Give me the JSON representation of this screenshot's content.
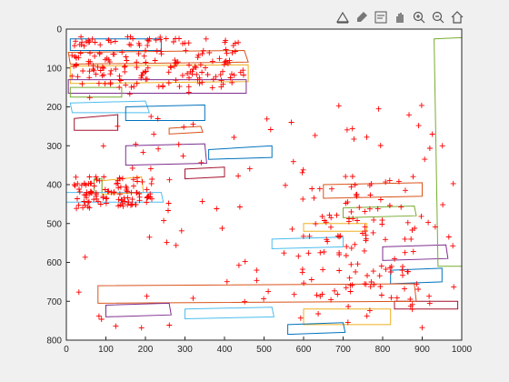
{
  "toolbar": {
    "items": [
      {
        "name": "export-icon"
      },
      {
        "name": "brush-icon"
      },
      {
        "name": "datatip-icon"
      },
      {
        "name": "pan-hand-icon"
      },
      {
        "name": "zoom-in-icon"
      },
      {
        "name": "zoom-out-icon"
      },
      {
        "name": "home-icon"
      }
    ]
  },
  "chart_data": {
    "type": "scatter",
    "title": "",
    "xlabel": "",
    "ylabel": "",
    "xlim": [
      0,
      1000
    ],
    "ylim": [
      0,
      800
    ],
    "y_reversed": true,
    "grid": false,
    "x_ticks": [
      "0",
      "100",
      "200",
      "300",
      "400",
      "500",
      "600",
      "700",
      "800",
      "900",
      "1000"
    ],
    "y_ticks": [
      "0",
      "100",
      "200",
      "300",
      "400",
      "500",
      "600",
      "700",
      "800"
    ],
    "marker": {
      "symbol": "+",
      "color": "#ff0000"
    },
    "polygons": [
      {
        "color": "#0072bd",
        "points": [
          [
            10,
            25
          ],
          [
            240,
            25
          ],
          [
            240,
            55
          ],
          [
            10,
            55
          ]
        ]
      },
      {
        "color": "#d95319",
        "points": [
          [
            5,
            60
          ],
          [
            450,
            55
          ],
          [
            460,
            85
          ],
          [
            10,
            90
          ]
        ]
      },
      {
        "color": "#edb120",
        "points": [
          [
            10,
            95
          ],
          [
            460,
            92
          ],
          [
            460,
            135
          ],
          [
            10,
            140
          ]
        ]
      },
      {
        "color": "#7e2f8e",
        "points": [
          [
            5,
            130
          ],
          [
            455,
            130
          ],
          [
            455,
            165
          ],
          [
            5,
            165
          ]
        ]
      },
      {
        "color": "#77ac30",
        "points": [
          [
            10,
            150
          ],
          [
            140,
            150
          ],
          [
            140,
            175
          ],
          [
            10,
            175
          ]
        ]
      },
      {
        "color": "#4dbeee",
        "points": [
          [
            10,
            190
          ],
          [
            200,
            185
          ],
          [
            210,
            215
          ],
          [
            15,
            215
          ]
        ]
      },
      {
        "color": "#a2142f",
        "points": [
          [
            20,
            230
          ],
          [
            130,
            220
          ],
          [
            130,
            260
          ],
          [
            20,
            260
          ]
        ]
      },
      {
        "color": "#0072bd",
        "points": [
          [
            150,
            200
          ],
          [
            350,
            195
          ],
          [
            350,
            235
          ],
          [
            150,
            235
          ]
        ]
      },
      {
        "color": "#d95319",
        "points": [
          [
            260,
            255
          ],
          [
            340,
            250
          ],
          [
            345,
            265
          ],
          [
            260,
            270
          ]
        ]
      },
      {
        "color": "#edb120",
        "points": [
          [
            90,
            390
          ],
          [
            190,
            380
          ],
          [
            195,
            420
          ],
          [
            90,
            425
          ]
        ]
      },
      {
        "color": "#77ac30",
        "points": [
          [
            70,
            385
          ],
          [
            90,
            385
          ],
          [
            90,
            420
          ],
          [
            70,
            420
          ]
        ]
      },
      {
        "color": "#4dbeee",
        "points": [
          [
            0,
            420
          ],
          [
            240,
            420
          ],
          [
            245,
            445
          ],
          [
            0,
            445
          ]
        ]
      },
      {
        "color": "#7e2f8e",
        "points": [
          [
            150,
            300
          ],
          [
            350,
            295
          ],
          [
            355,
            345
          ],
          [
            150,
            350
          ]
        ]
      },
      {
        "color": "#0072bd",
        "points": [
          [
            360,
            310
          ],
          [
            520,
            300
          ],
          [
            520,
            330
          ],
          [
            360,
            335
          ]
        ]
      },
      {
        "color": "#a2142f",
        "points": [
          [
            300,
            360
          ],
          [
            400,
            355
          ],
          [
            400,
            380
          ],
          [
            300,
            385
          ]
        ]
      },
      {
        "color": "#d95319",
        "points": [
          [
            650,
            400
          ],
          [
            900,
            395
          ],
          [
            900,
            430
          ],
          [
            650,
            435
          ]
        ]
      },
      {
        "color": "#77ac30",
        "points": [
          [
            700,
            460
          ],
          [
            880,
            455
          ],
          [
            885,
            480
          ],
          [
            700,
            485
          ]
        ]
      },
      {
        "color": "#edb120",
        "points": [
          [
            600,
            500
          ],
          [
            760,
            500
          ],
          [
            760,
            520
          ],
          [
            600,
            520
          ]
        ]
      },
      {
        "color": "#4dbeee",
        "points": [
          [
            520,
            540
          ],
          [
            700,
            535
          ],
          [
            700,
            560
          ],
          [
            520,
            565
          ]
        ]
      },
      {
        "color": "#7e2f8e",
        "points": [
          [
            800,
            560
          ],
          [
            960,
            555
          ],
          [
            965,
            590
          ],
          [
            800,
            595
          ]
        ]
      },
      {
        "color": "#0072bd",
        "points": [
          [
            820,
            620
          ],
          [
            950,
            615
          ],
          [
            950,
            650
          ],
          [
            820,
            655
          ]
        ]
      },
      {
        "color": "#a2142f",
        "points": [
          [
            830,
            700
          ],
          [
            990,
            700
          ],
          [
            990,
            720
          ],
          [
            830,
            720
          ]
        ]
      },
      {
        "color": "#77ac30",
        "points": [
          [
            930,
            25
          ],
          [
            1000,
            22
          ],
          [
            1000,
            610
          ],
          [
            940,
            610
          ]
        ]
      },
      {
        "color": "#d95319",
        "points": [
          [
            80,
            660
          ],
          [
            880,
            655
          ],
          [
            885,
            700
          ],
          [
            80,
            705
          ]
        ]
      },
      {
        "color": "#4dbeee",
        "points": [
          [
            300,
            720
          ],
          [
            520,
            715
          ],
          [
            525,
            740
          ],
          [
            300,
            745
          ]
        ]
      },
      {
        "color": "#edb120",
        "points": [
          [
            600,
            720
          ],
          [
            820,
            720
          ],
          [
            820,
            760
          ],
          [
            600,
            760
          ]
        ]
      },
      {
        "color": "#7e2f8e",
        "points": [
          [
            100,
            710
          ],
          [
            260,
            705
          ],
          [
            265,
            735
          ],
          [
            100,
            740
          ]
        ]
      },
      {
        "color": "#0072bd",
        "points": [
          [
            560,
            760
          ],
          [
            700,
            755
          ],
          [
            705,
            780
          ],
          [
            560,
            785
          ]
        ]
      }
    ],
    "scatter_seed": 7,
    "scatter_count": 520
  }
}
